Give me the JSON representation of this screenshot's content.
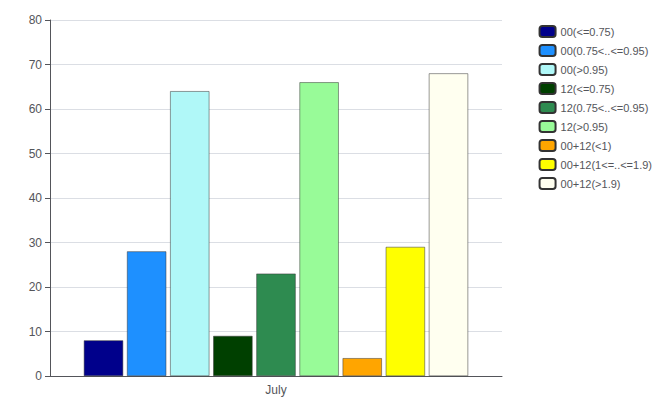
{
  "chart_data": {
    "type": "bar",
    "categories": [
      "July"
    ],
    "series": [
      {
        "name": "00(<=0.75)",
        "color": "#00008B",
        "values": [
          8
        ]
      },
      {
        "name": "00(0.75<..<=0.95)",
        "color": "#1E90FF",
        "values": [
          28
        ]
      },
      {
        "name": "00(>0.95)",
        "color": "#B0F8F8",
        "values": [
          64
        ]
      },
      {
        "name": "12(<=0.75)",
        "color": "#004000",
        "values": [
          9
        ]
      },
      {
        "name": "12(0.75<..<=0.95)",
        "color": "#2E8B50",
        "values": [
          23
        ]
      },
      {
        "name": "12(>0.95)",
        "color": "#98FB98",
        "values": [
          66
        ]
      },
      {
        "name": "00+12(<1)",
        "color": "#FFA500",
        "values": [
          4
        ]
      },
      {
        "name": "00+12(1<=..<=1.9)",
        "color": "#FFFF00",
        "values": [
          29
        ]
      },
      {
        "name": "00+12(>1.9)",
        "color": "#FFFFF0",
        "values": [
          68
        ]
      }
    ],
    "ylim": [
      0,
      80
    ],
    "yticks": [
      0,
      10,
      20,
      30,
      40,
      50,
      60,
      70,
      80
    ],
    "grid": true,
    "legend": "upper right"
  }
}
